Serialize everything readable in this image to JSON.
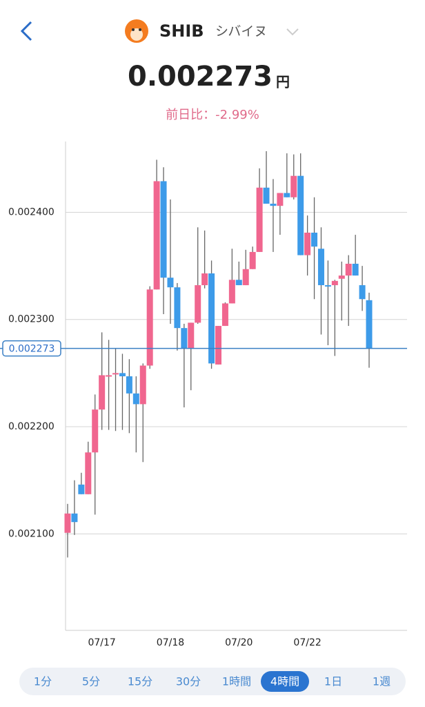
{
  "header": {
    "title": "SHIB",
    "subtitle": "シバイヌ",
    "price": "0.002273",
    "unit": "円",
    "change": "前日比：-2.99%"
  },
  "chart_data": {
    "type": "candlestick",
    "categories": [
      null,
      null,
      null,
      null,
      null,
      "07/17",
      null,
      null,
      null,
      null,
      null,
      null,
      null,
      null,
      null,
      "07/18",
      null,
      null,
      null,
      null,
      null,
      null,
      null,
      null,
      null,
      "07/20",
      null,
      null,
      null,
      null,
      null,
      null,
      null,
      null,
      null,
      "07/22",
      null,
      null,
      null,
      null,
      null,
      null,
      null,
      null,
      null
    ],
    "open": [
      0.002101,
      0.002119,
      0.002146,
      0.002137,
      0.002176,
      0.002216,
      0.002247,
      0.002249,
      0.00225,
      0.002247,
      0.002231,
      0.002221,
      0.002257,
      0.002328,
      0.002429,
      0.002339,
      0.00233,
      0.002292,
      0.002273,
      0.002297,
      0.002332,
      0.002343,
      0.002258,
      0.002294,
      0.002315,
      0.002337,
      0.002332,
      0.002347,
      0.002363,
      0.002423,
      0.002408,
      0.002406,
      0.002418,
      0.002414,
      0.002434,
      0.00236,
      0.002381,
      0.002366,
      0.002332,
      0.002332,
      0.002338,
      0.002341,
      0.002352,
      0.002332,
      0.002318
    ],
    "high": [
      0.002128,
      0.00215,
      0.002157,
      0.002186,
      0.00223,
      0.002288,
      0.002281,
      0.002273,
      0.002268,
      0.002263,
      0.002247,
      0.002259,
      0.002331,
      0.002449,
      0.002442,
      0.002412,
      0.002334,
      0.002296,
      0.002297,
      0.002386,
      0.002383,
      0.002355,
      0.002294,
      0.002316,
      0.002366,
      0.002354,
      0.002365,
      0.002368,
      0.002441,
      0.002457,
      0.002431,
      0.002418,
      0.002455,
      0.002454,
      0.002455,
      0.002397,
      0.002414,
      0.002386,
      0.002355,
      0.002337,
      0.002354,
      0.00236,
      0.002379,
      0.00235,
      0.002325
    ],
    "low": [
      0.002078,
      0.002099,
      0.002137,
      0.002137,
      0.002118,
      0.002197,
      0.002197,
      0.002196,
      0.002197,
      0.002194,
      0.002176,
      0.002167,
      0.002254,
      0.002328,
      0.002305,
      0.002296,
      0.002271,
      0.002218,
      0.002234,
      0.002296,
      0.002329,
      0.002254,
      0.002258,
      0.002294,
      0.002315,
      0.002332,
      0.002332,
      0.002347,
      0.002363,
      0.002408,
      0.002363,
      0.002379,
      0.002414,
      0.002412,
      0.00236,
      0.002341,
      0.002319,
      0.002286,
      0.002276,
      0.002266,
      0.002299,
      0.002294,
      0.002341,
      0.002308,
      0.002255
    ],
    "close": [
      0.002119,
      0.002111,
      0.002137,
      0.002176,
      0.002216,
      0.002248,
      0.002248,
      0.00225,
      0.002247,
      0.002231,
      0.002221,
      0.002257,
      0.002328,
      0.002429,
      0.002339,
      0.00233,
      0.002292,
      0.002273,
      0.002297,
      0.002332,
      0.002343,
      0.002259,
      0.002294,
      0.002315,
      0.002337,
      0.002332,
      0.002347,
      0.002363,
      0.002423,
      0.002408,
      0.002406,
      0.002418,
      0.002414,
      0.002434,
      0.00236,
      0.002381,
      0.002368,
      0.002332,
      0.002331,
      0.002336,
      0.002341,
      0.002352,
      0.002341,
      0.002319,
      0.002273
    ],
    "up_color": "#f0668f",
    "down_color": "#3d9be9",
    "ylim": [
      0.00201,
      0.002466
    ],
    "yticks": [
      {
        "value": 0.0021,
        "label": "0.002100"
      },
      {
        "value": 0.0022,
        "label": "0.002200"
      },
      {
        "value": 0.0023,
        "label": "0.002300"
      },
      {
        "value": 0.0024,
        "label": "0.002400"
      }
    ],
    "grid": true,
    "current_price": {
      "value": 0.002273,
      "label": "0.002273"
    }
  },
  "tabs": {
    "items": [
      "1分",
      "5分",
      "15分",
      "30分",
      "1時間",
      "4時間",
      "1日",
      "1週"
    ],
    "selected": 5
  }
}
